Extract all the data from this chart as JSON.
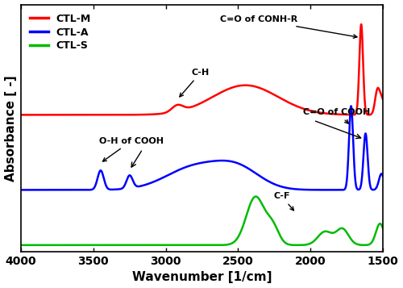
{
  "xlabel": "Wavenumber [1/cm]",
  "ylabel": "Absorbance [ -]",
  "legend": [
    {
      "label": "CTL-M",
      "color": "#ff0000"
    },
    {
      "label": "CTL-A",
      "color": "#0000ff"
    },
    {
      "label": "CTL-S",
      "color": "#00bb00"
    }
  ],
  "xticks": [
    4000,
    3500,
    3000,
    2500,
    2000,
    1500
  ],
  "background": "#ffffff",
  "linewidth": 1.8
}
